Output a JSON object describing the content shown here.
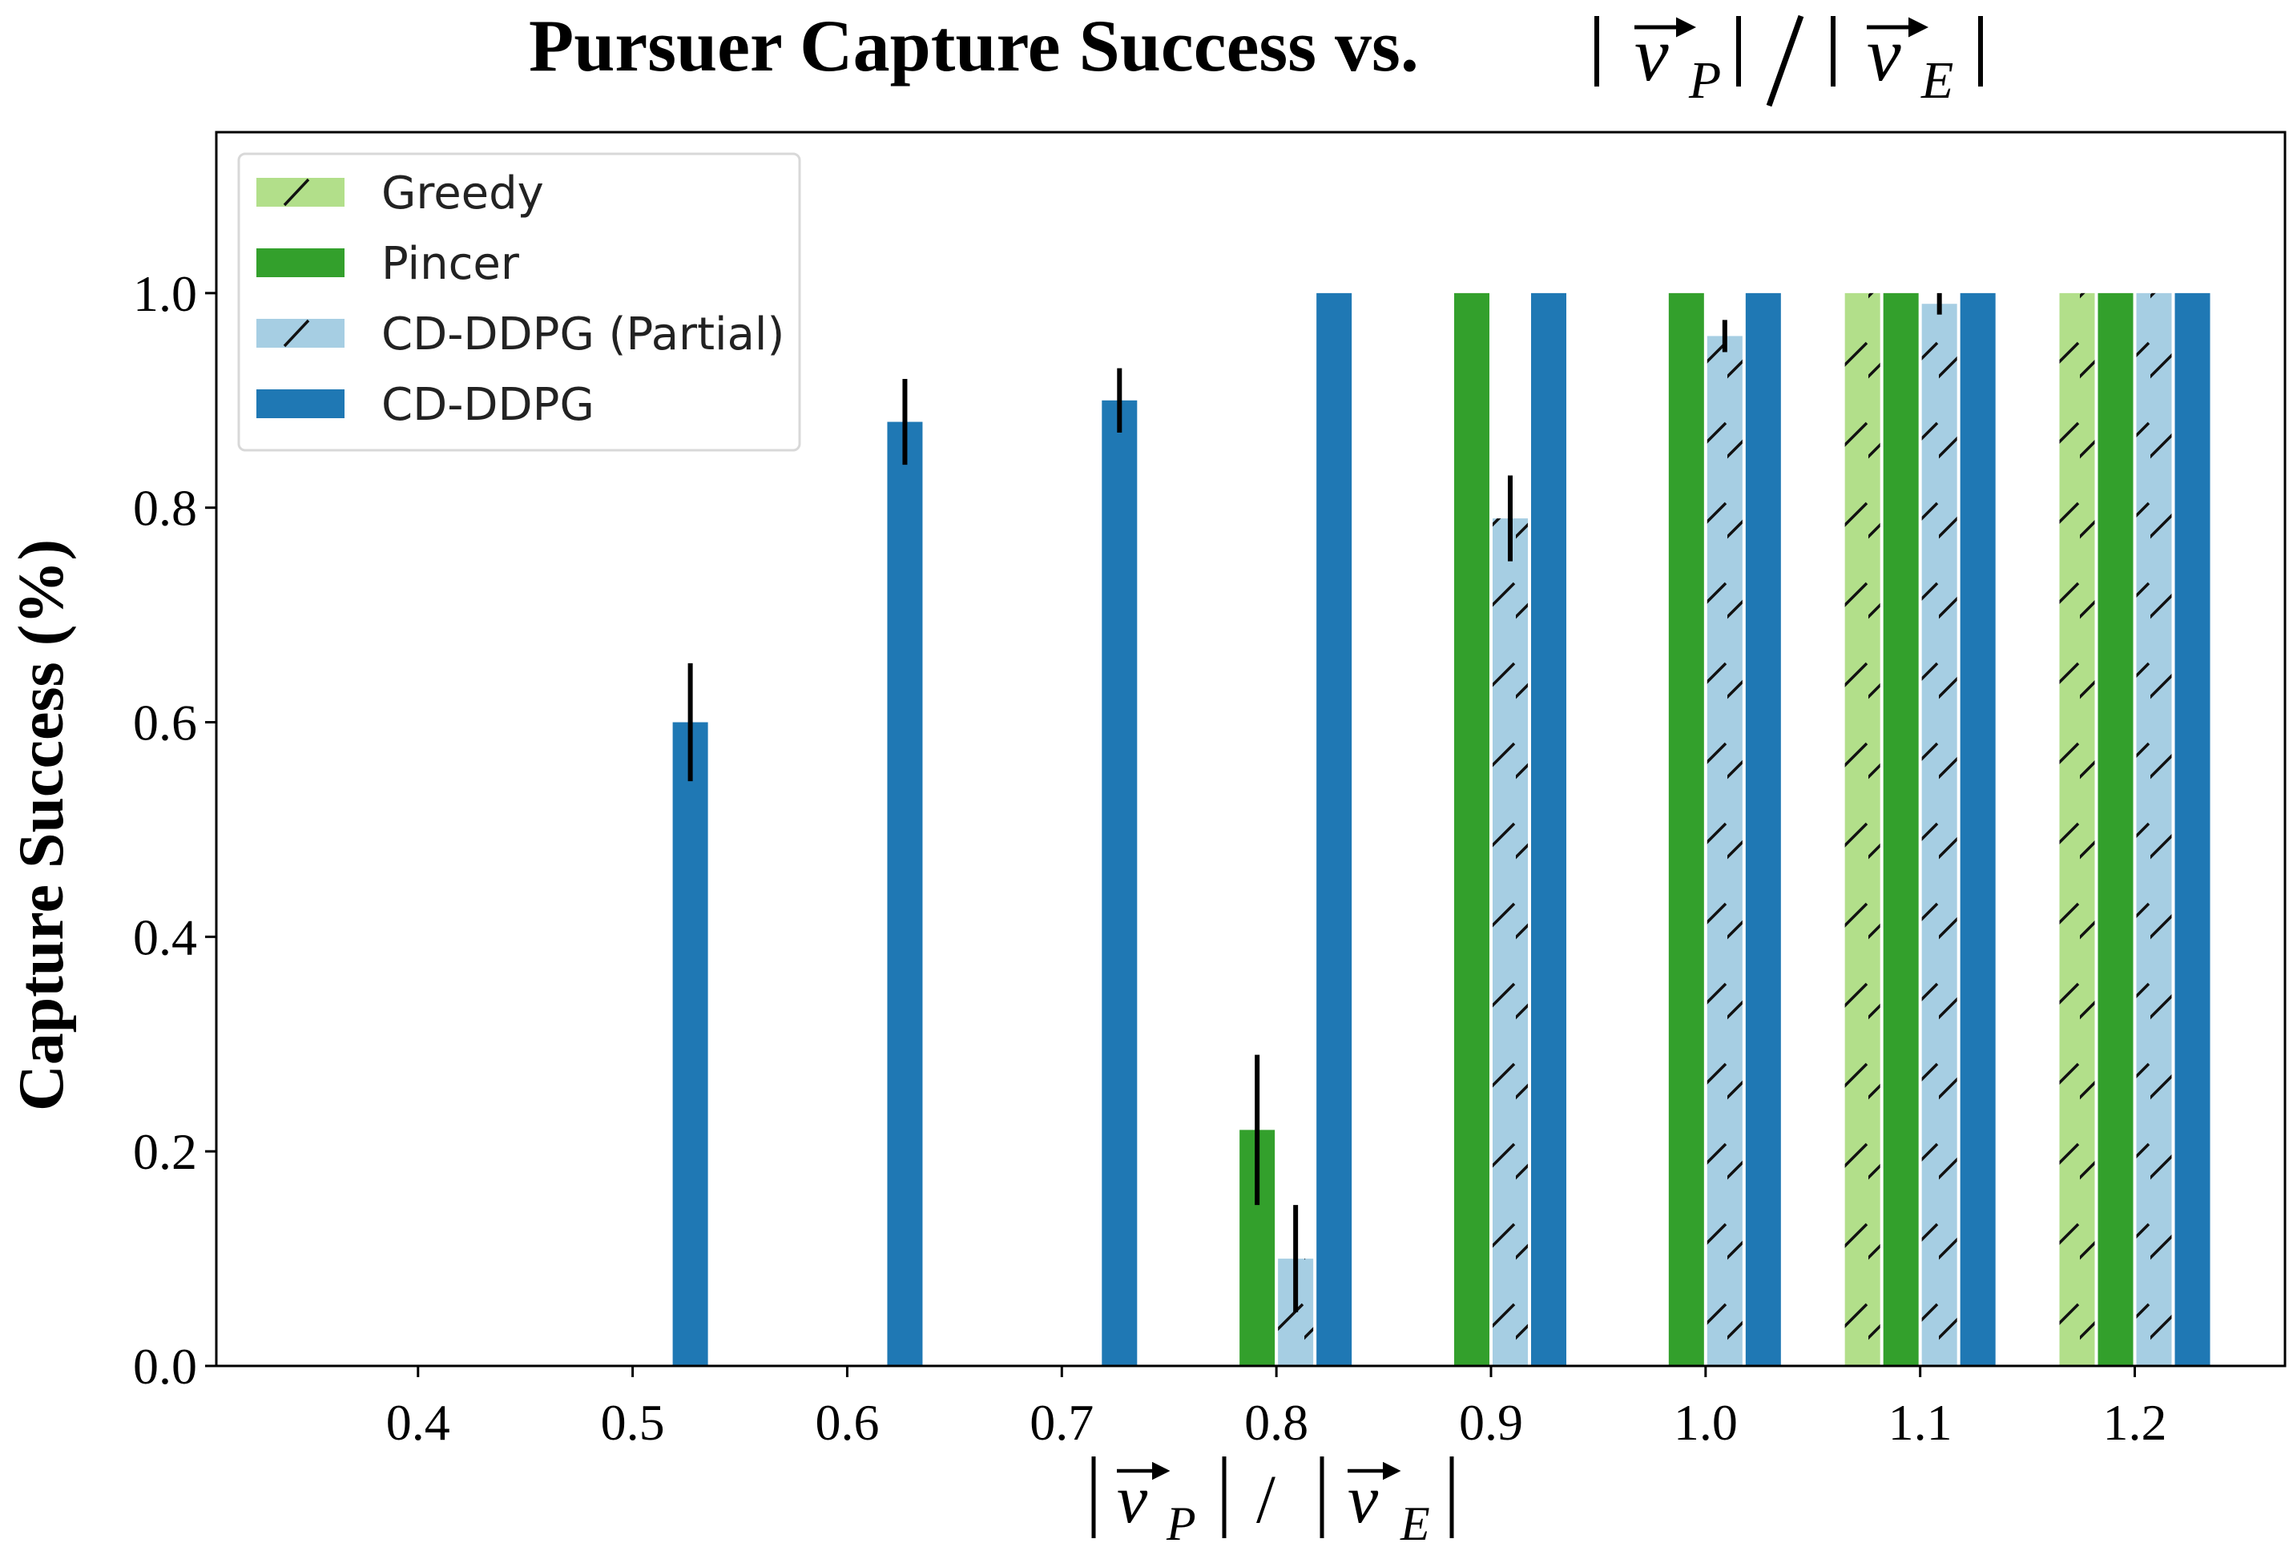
{
  "chart_data": {
    "type": "bar",
    "title": {
      "prefix": "Pursuer Capture Success vs. ",
      "symbol": "v",
      "sub_p": "P",
      "sub_e": "E"
    },
    "xlabel": {
      "symbol": "v",
      "sub_p": "P",
      "sub_e": "E",
      "divider": "/"
    },
    "ylabel": "Capture Success (%)",
    "categories": [
      "0.4",
      "0.5",
      "0.6",
      "0.7",
      "0.8",
      "0.9",
      "1.0",
      "1.1",
      "1.2"
    ],
    "x": [
      0.4,
      0.5,
      0.6,
      0.7,
      0.8,
      0.9,
      1.0,
      1.1,
      1.2
    ],
    "xlim": [
      0.306,
      1.27
    ],
    "ylim": [
      0.0,
      1.15
    ],
    "yticks": [
      "0.0",
      "0.2",
      "0.4",
      "0.6",
      "0.8",
      "1.0"
    ],
    "ytick_values": [
      0.0,
      0.2,
      0.4,
      0.6,
      0.8,
      1.0
    ],
    "grid": false,
    "legend_position": "top-left",
    "series": [
      {
        "name": "Greedy",
        "color": "#b2df8a",
        "hatch": true,
        "values": [
          0,
          0,
          0,
          0,
          0,
          0,
          0,
          1.0,
          1.0
        ],
        "errors": [
          0,
          0,
          0,
          0,
          0,
          0,
          0,
          0,
          0
        ]
      },
      {
        "name": "Pincer",
        "color": "#33a02c",
        "hatch": false,
        "values": [
          0,
          0,
          0,
          0,
          0.22,
          1.0,
          1.0,
          1.0,
          1.0
        ],
        "errors": [
          0,
          0,
          0,
          0,
          0.07,
          0,
          0,
          0,
          0
        ]
      },
      {
        "name": "CD-DDPG (Partial)",
        "color": "#a6cee3",
        "hatch": true,
        "values": [
          0,
          0,
          0,
          0,
          0.1,
          0.79,
          0.96,
          0.99,
          1.0
        ],
        "errors": [
          0,
          0,
          0,
          0,
          0.05,
          0.04,
          0.015,
          0.01,
          0
        ]
      },
      {
        "name": "CD-DDPG",
        "color": "#1f78b4",
        "hatch": false,
        "values": [
          0,
          0.6,
          0.88,
          0.9,
          1.0,
          1.0,
          1.0,
          1.0,
          1.0
        ],
        "errors": [
          0,
          0.055,
          0.04,
          0.03,
          0,
          0,
          0,
          0,
          0
        ]
      }
    ]
  }
}
